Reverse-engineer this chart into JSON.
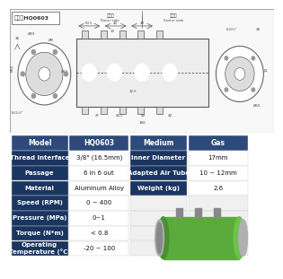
{
  "title_label": "型号：HQ0603",
  "bg_color": "#ffffff",
  "table_header_color": "#2d4a7a",
  "table_row_color_dark": "#1a3560",
  "table_row_color_light": "#ffffff",
  "table_header_text": "#ffffff",
  "table_value_text": "#1a1a1a",
  "rows": [
    [
      "Model",
      "HQ0603",
      "Medium",
      "Gas"
    ],
    [
      "Thread Interface",
      "3/8\" (16.5mm)",
      "Inner Diameter",
      "17mm"
    ],
    [
      "Passage",
      "6 in 6 out",
      "Adapted Air Tube",
      "10 ~ 12mm"
    ],
    [
      "Material",
      "Aluminum Alloy",
      "Weight (kg)",
      "2.6"
    ],
    [
      "Speed (RPM)",
      "0 ~ 400",
      "",
      ""
    ],
    [
      "Pressure (MPa)",
      "0~1",
      "",
      ""
    ],
    [
      "Torque (N*m)",
      "< 0.8",
      "",
      ""
    ],
    [
      "Operating\nTemperature (°C)",
      "-20 ~ 100",
      "",
      ""
    ]
  ],
  "diagram": {
    "rotor_label": "转子端",
    "rotor_sub": "Rotor side",
    "stator_label": "定子端",
    "stator_sub": "Stator side"
  }
}
